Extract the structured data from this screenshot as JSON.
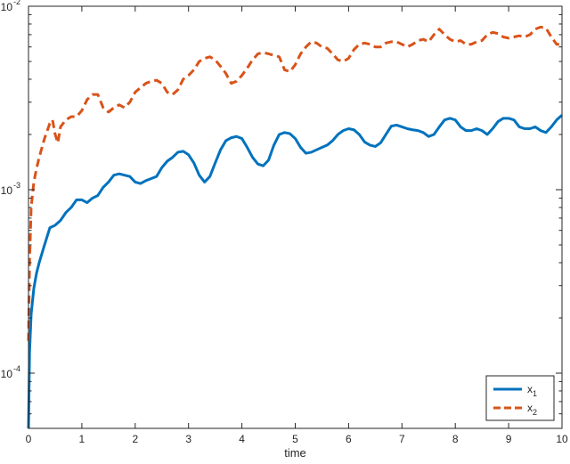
{
  "chart_data": {
    "type": "line",
    "title": "",
    "xlabel": "time",
    "ylabel": "",
    "xlim": [
      0,
      10
    ],
    "ylim": [
      5e-05,
      0.01
    ],
    "yscale": "log",
    "grid": false,
    "legend_position": "bottom-right",
    "x_ticks": [
      "0",
      "1",
      "2",
      "3",
      "4",
      "5",
      "6",
      "7",
      "8",
      "9",
      "10"
    ],
    "y_ticks": [
      {
        "base": "10",
        "exp": "-4",
        "value": 0.0001
      },
      {
        "base": "10",
        "exp": "-3",
        "value": 0.001
      },
      {
        "base": "10",
        "exp": "-2",
        "value": 0.01
      }
    ],
    "series": [
      {
        "name_main": "x",
        "name_sub": "1",
        "color": "#0072BD",
        "style": "solid",
        "x": [
          0,
          0.02,
          0.05,
          0.1,
          0.15,
          0.2,
          0.3,
          0.4,
          0.5,
          0.6,
          0.7,
          0.8,
          0.9,
          1.0,
          1.1,
          1.2,
          1.3,
          1.4,
          1.5,
          1.6,
          1.7,
          1.8,
          1.9,
          2.0,
          2.1,
          2.2,
          2.3,
          2.4,
          2.5,
          2.6,
          2.7,
          2.8,
          2.9,
          3.0,
          3.1,
          3.2,
          3.3,
          3.4,
          3.5,
          3.6,
          3.7,
          3.8,
          3.9,
          4.0,
          4.1,
          4.2,
          4.3,
          4.4,
          4.5,
          4.6,
          4.7,
          4.8,
          4.9,
          5.0,
          5.1,
          5.2,
          5.3,
          5.4,
          5.5,
          5.6,
          5.7,
          5.8,
          5.9,
          6.0,
          6.1,
          6.2,
          6.3,
          6.4,
          6.5,
          6.6,
          6.7,
          6.8,
          6.9,
          7.0,
          7.1,
          7.2,
          7.3,
          7.4,
          7.5,
          7.6,
          7.7,
          7.8,
          7.9,
          8.0,
          8.1,
          8.2,
          8.3,
          8.4,
          8.5,
          8.6,
          8.7,
          8.8,
          8.9,
          9.0,
          9.1,
          9.2,
          9.3,
          9.4,
          9.5,
          9.6,
          9.7,
          9.8,
          9.9,
          10.0
        ],
        "y": [
          5e-05,
          0.00013,
          0.00021,
          0.00029,
          0.00035,
          0.0004,
          0.0005,
          0.00062,
          0.00064,
          0.00068,
          0.00075,
          0.0008,
          0.00088,
          0.00088,
          0.00085,
          0.0009,
          0.00093,
          0.00103,
          0.0011,
          0.0012,
          0.00122,
          0.0012,
          0.00118,
          0.0011,
          0.00108,
          0.00112,
          0.00115,
          0.00118,
          0.00132,
          0.00143,
          0.0015,
          0.0016,
          0.00162,
          0.00155,
          0.0014,
          0.0012,
          0.0011,
          0.00118,
          0.0014,
          0.00165,
          0.00185,
          0.00192,
          0.00195,
          0.0019,
          0.0017,
          0.0015,
          0.00138,
          0.00135,
          0.00145,
          0.00175,
          0.002,
          0.00205,
          0.00202,
          0.0019,
          0.0017,
          0.00158,
          0.0016,
          0.00165,
          0.0017,
          0.00175,
          0.00185,
          0.002,
          0.0021,
          0.00215,
          0.00212,
          0.002,
          0.00182,
          0.00175,
          0.00172,
          0.0018,
          0.002,
          0.00222,
          0.00225,
          0.0022,
          0.00215,
          0.00212,
          0.0021,
          0.00205,
          0.00195,
          0.002,
          0.0022,
          0.0024,
          0.00245,
          0.0024,
          0.0022,
          0.0021,
          0.0021,
          0.00215,
          0.0021,
          0.002,
          0.00215,
          0.00235,
          0.00245,
          0.00245,
          0.0024,
          0.0022,
          0.00215,
          0.00215,
          0.0022,
          0.0021,
          0.00205,
          0.0022,
          0.0024,
          0.00255
        ]
      },
      {
        "name_main": "x",
        "name_sub": "2",
        "color": "#D95319",
        "style": "dashed",
        "x": [
          0,
          0.02,
          0.05,
          0.1,
          0.15,
          0.2,
          0.3,
          0.4,
          0.45,
          0.5,
          0.55,
          0.6,
          0.7,
          0.8,
          0.9,
          1.0,
          1.1,
          1.2,
          1.3,
          1.4,
          1.5,
          1.6,
          1.7,
          1.8,
          1.9,
          2.0,
          2.1,
          2.2,
          2.3,
          2.4,
          2.5,
          2.6,
          2.7,
          2.8,
          2.9,
          3.0,
          3.1,
          3.2,
          3.3,
          3.4,
          3.5,
          3.6,
          3.7,
          3.8,
          3.9,
          4.0,
          4.1,
          4.2,
          4.3,
          4.4,
          4.5,
          4.6,
          4.7,
          4.8,
          4.9,
          5.0,
          5.1,
          5.2,
          5.3,
          5.4,
          5.5,
          5.6,
          5.7,
          5.8,
          5.9,
          6.0,
          6.1,
          6.2,
          6.3,
          6.4,
          6.5,
          6.6,
          6.7,
          6.8,
          6.9,
          7.0,
          7.1,
          7.2,
          7.3,
          7.4,
          7.5,
          7.6,
          7.7,
          7.8,
          7.9,
          8.0,
          8.1,
          8.2,
          8.3,
          8.4,
          8.5,
          8.6,
          8.7,
          8.8,
          8.9,
          9.0,
          9.1,
          9.2,
          9.3,
          9.4,
          9.5,
          9.6,
          9.7,
          9.8,
          9.9,
          10.0
        ],
        "y": [
          0.00015,
          0.0004,
          0.0008,
          0.0011,
          0.0013,
          0.0015,
          0.0019,
          0.0023,
          0.0024,
          0.002,
          0.0018,
          0.0022,
          0.0024,
          0.0025,
          0.0025,
          0.0027,
          0.0031,
          0.0033,
          0.0033,
          0.0028,
          0.00265,
          0.0028,
          0.0029,
          0.0028,
          0.003,
          0.0034,
          0.0036,
          0.0038,
          0.0039,
          0.00395,
          0.0038,
          0.0034,
          0.0033,
          0.0035,
          0.004,
          0.0042,
          0.0045,
          0.005,
          0.0052,
          0.0053,
          0.0051,
          0.0047,
          0.0043,
          0.0038,
          0.0039,
          0.0042,
          0.0046,
          0.0051,
          0.0055,
          0.0056,
          0.0055,
          0.0054,
          0.0053,
          0.0045,
          0.0044,
          0.0048,
          0.0055,
          0.006,
          0.0064,
          0.0063,
          0.006,
          0.0059,
          0.0055,
          0.0051,
          0.005,
          0.0052,
          0.0058,
          0.0062,
          0.0063,
          0.0062,
          0.006,
          0.006,
          0.0063,
          0.0064,
          0.0064,
          0.0062,
          0.006,
          0.0062,
          0.0065,
          0.0066,
          0.0064,
          0.007,
          0.0075,
          0.007,
          0.0066,
          0.0064,
          0.0065,
          0.0062,
          0.0062,
          0.0064,
          0.0065,
          0.007,
          0.0072,
          0.0071,
          0.0068,
          0.0067,
          0.0068,
          0.0069,
          0.0068,
          0.007,
          0.0075,
          0.0077,
          0.0076,
          0.0068,
          0.0062,
          0.0062
        ]
      }
    ]
  }
}
